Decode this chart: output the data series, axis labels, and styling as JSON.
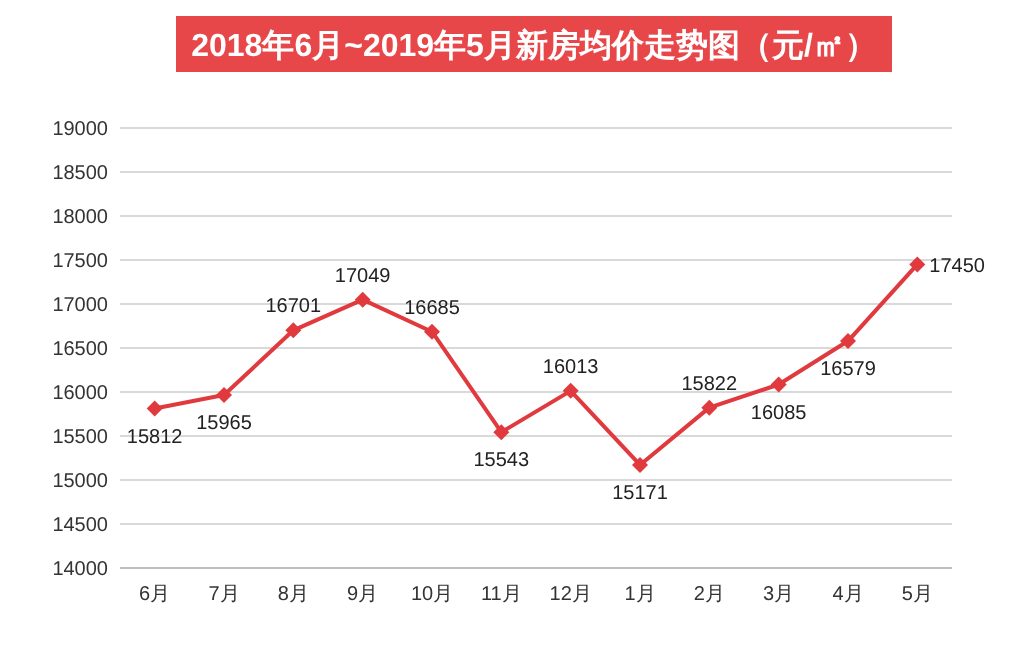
{
  "chart_data": {
    "type": "line",
    "title": "2018年6月~2019年5月新房均价走势图（元/㎡）",
    "categories": [
      "6月",
      "7月",
      "8月",
      "9月",
      "10月",
      "11月",
      "12月",
      "1月",
      "2月",
      "3月",
      "4月",
      "5月"
    ],
    "series": [
      {
        "color": "#e0393e",
        "values": [
          15812,
          15965,
          16701,
          17049,
          16685,
          15543,
          16013,
          15171,
          15822,
          16085,
          16579,
          17450
        ]
      }
    ],
    "ylim": [
      14000,
      19000
    ],
    "yticks": [
      14000,
      14500,
      15000,
      15500,
      16000,
      16500,
      17000,
      17500,
      18000,
      18500,
      19000
    ],
    "grid": "y",
    "marker": "diamond",
    "line_style": "solid",
    "data_labels": true
  }
}
